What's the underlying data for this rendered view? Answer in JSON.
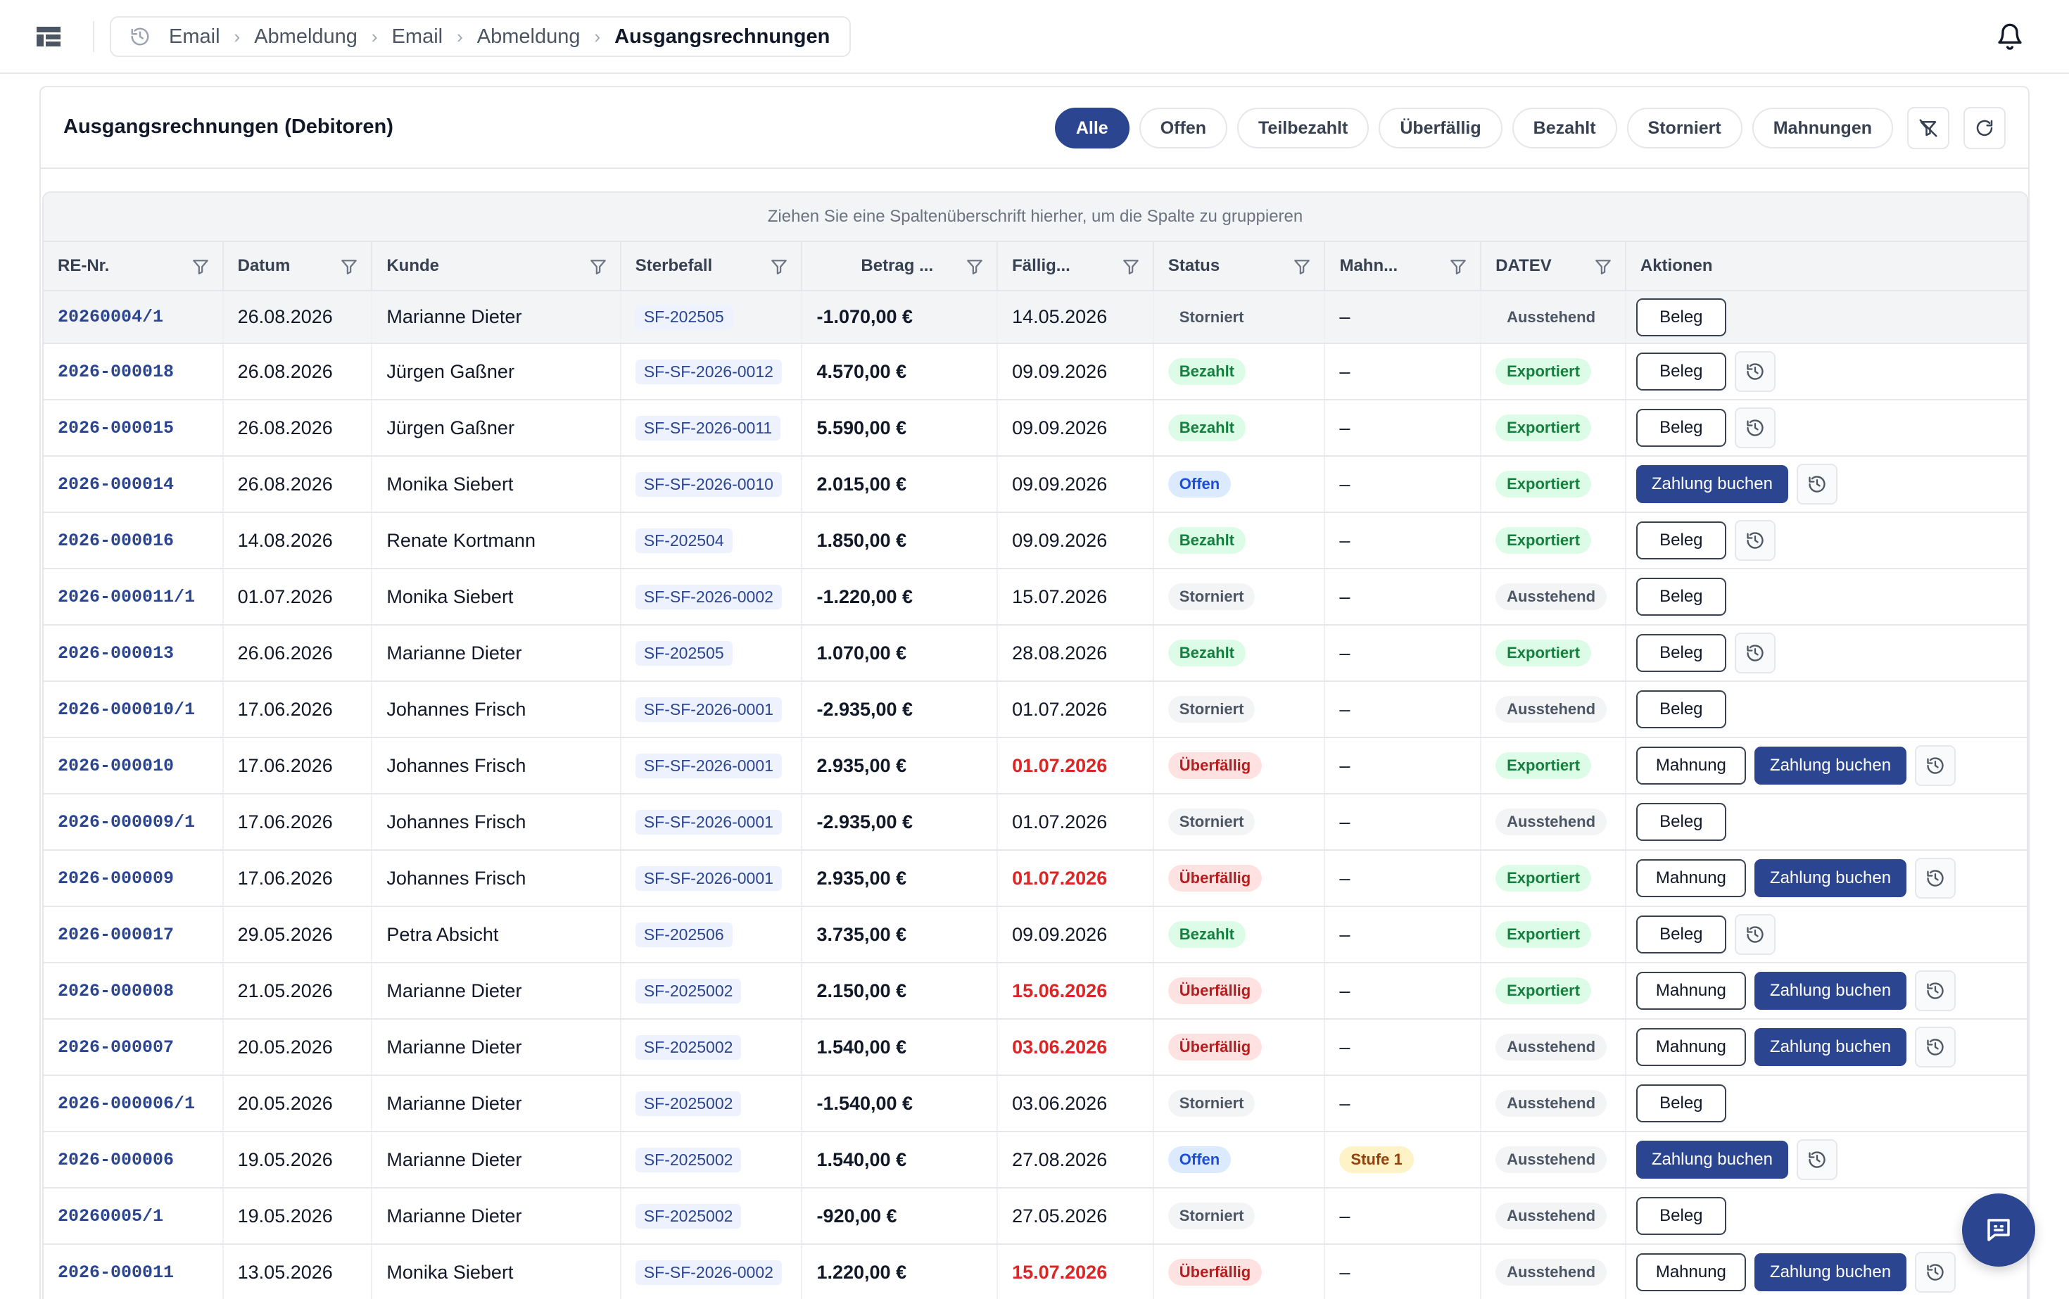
{
  "breadcrumb": [
    "Email",
    "Abmeldung",
    "Email",
    "Abmeldung",
    "Ausgangsrechnungen"
  ],
  "page": {
    "title": "Ausgangsrechnungen (Debitoren)"
  },
  "filters": [
    "Alle",
    "Offen",
    "Teilbezahlt",
    "Überfällig",
    "Bezahlt",
    "Storniert",
    "Mahnungen"
  ],
  "active_filter": "Alle",
  "grid": {
    "group_hint": "Ziehen Sie eine Spaltenüberschrift hierher, um die Spalte zu gruppieren",
    "columns": [
      "RE-Nr.",
      "Datum",
      "Kunde",
      "Sterbefall",
      "Betrag ...",
      "Fällig...",
      "Status",
      "Mahn...",
      "DATEV",
      "Aktionen"
    ]
  },
  "labels": {
    "beleg": "Beleg",
    "mahnung": "Mahnung",
    "zahlung": "Zahlung buchen"
  },
  "colors": {
    "primary": "#2b4590",
    "overdue": "#dc2626",
    "paid": "#15803d"
  },
  "rows": [
    {
      "re": "20260004/1",
      "datum": "26.08.2026",
      "kunde": "Marianne Dieter",
      "sterbefall": "SF-202505",
      "betrag": "-1.070,00 €",
      "faellig": "14.05.2026",
      "faellig_overdue": false,
      "status": "Storniert",
      "mahn": "–",
      "datev": "Ausstehend",
      "actions": [
        "beleg"
      ]
    },
    {
      "re": "2026-000018",
      "datum": "26.08.2026",
      "kunde": "Jürgen Gaßner",
      "sterbefall": "SF-SF-2026-0012",
      "betrag": "4.570,00 €",
      "faellig": "09.09.2026",
      "faellig_overdue": false,
      "status": "Bezahlt",
      "mahn": "–",
      "datev": "Exportiert",
      "actions": [
        "beleg",
        "history"
      ]
    },
    {
      "re": "2026-000015",
      "datum": "26.08.2026",
      "kunde": "Jürgen Gaßner",
      "sterbefall": "SF-SF-2026-0011",
      "betrag": "5.590,00 €",
      "faellig": "09.09.2026",
      "faellig_overdue": false,
      "status": "Bezahlt",
      "mahn": "–",
      "datev": "Exportiert",
      "actions": [
        "beleg",
        "history"
      ]
    },
    {
      "re": "2026-000014",
      "datum": "26.08.2026",
      "kunde": "Monika Siebert",
      "sterbefall": "SF-SF-2026-0010",
      "betrag": "2.015,00 €",
      "faellig": "09.09.2026",
      "faellig_overdue": false,
      "status": "Offen",
      "mahn": "–",
      "datev": "Exportiert",
      "actions": [
        "zahlung",
        "history"
      ]
    },
    {
      "re": "2026-000016",
      "datum": "14.08.2026",
      "kunde": "Renate Kortmann",
      "sterbefall": "SF-202504",
      "betrag": "1.850,00 €",
      "faellig": "09.09.2026",
      "faellig_overdue": false,
      "status": "Bezahlt",
      "mahn": "–",
      "datev": "Exportiert",
      "actions": [
        "beleg",
        "history"
      ]
    },
    {
      "re": "2026-000011/1",
      "datum": "01.07.2026",
      "kunde": "Monika Siebert",
      "sterbefall": "SF-SF-2026-0002",
      "betrag": "-1.220,00 €",
      "faellig": "15.07.2026",
      "faellig_overdue": false,
      "status": "Storniert",
      "mahn": "–",
      "datev": "Ausstehend",
      "actions": [
        "beleg"
      ]
    },
    {
      "re": "2026-000013",
      "datum": "26.06.2026",
      "kunde": "Marianne Dieter",
      "sterbefall": "SF-202505",
      "betrag": "1.070,00 €",
      "faellig": "28.08.2026",
      "faellig_overdue": false,
      "status": "Bezahlt",
      "mahn": "–",
      "datev": "Exportiert",
      "actions": [
        "beleg",
        "history"
      ]
    },
    {
      "re": "2026-000010/1",
      "datum": "17.06.2026",
      "kunde": "Johannes Frisch",
      "sterbefall": "SF-SF-2026-0001",
      "betrag": "-2.935,00 €",
      "faellig": "01.07.2026",
      "faellig_overdue": false,
      "status": "Storniert",
      "mahn": "–",
      "datev": "Ausstehend",
      "actions": [
        "beleg"
      ]
    },
    {
      "re": "2026-000010",
      "datum": "17.06.2026",
      "kunde": "Johannes Frisch",
      "sterbefall": "SF-SF-2026-0001",
      "betrag": "2.935,00 €",
      "faellig": "01.07.2026",
      "faellig_overdue": true,
      "status": "Überfällig",
      "mahn": "–",
      "datev": "Exportiert",
      "actions": [
        "mahnung",
        "zahlung",
        "history"
      ]
    },
    {
      "re": "2026-000009/1",
      "datum": "17.06.2026",
      "kunde": "Johannes Frisch",
      "sterbefall": "SF-SF-2026-0001",
      "betrag": "-2.935,00 €",
      "faellig": "01.07.2026",
      "faellig_overdue": false,
      "status": "Storniert",
      "mahn": "–",
      "datev": "Ausstehend",
      "actions": [
        "beleg"
      ]
    },
    {
      "re": "2026-000009",
      "datum": "17.06.2026",
      "kunde": "Johannes Frisch",
      "sterbefall": "SF-SF-2026-0001",
      "betrag": "2.935,00 €",
      "faellig": "01.07.2026",
      "faellig_overdue": true,
      "status": "Überfällig",
      "mahn": "–",
      "datev": "Exportiert",
      "actions": [
        "mahnung",
        "zahlung",
        "history"
      ]
    },
    {
      "re": "2026-000017",
      "datum": "29.05.2026",
      "kunde": "Petra Absicht",
      "sterbefall": "SF-202506",
      "betrag": "3.735,00 €",
      "faellig": "09.09.2026",
      "faellig_overdue": false,
      "status": "Bezahlt",
      "mahn": "–",
      "datev": "Exportiert",
      "actions": [
        "beleg",
        "history"
      ]
    },
    {
      "re": "2026-000008",
      "datum": "21.05.2026",
      "kunde": "Marianne Dieter",
      "sterbefall": "SF-2025002",
      "betrag": "2.150,00 €",
      "faellig": "15.06.2026",
      "faellig_overdue": true,
      "status": "Überfällig",
      "mahn": "–",
      "datev": "Exportiert",
      "actions": [
        "mahnung",
        "zahlung",
        "history"
      ]
    },
    {
      "re": "2026-000007",
      "datum": "20.05.2026",
      "kunde": "Marianne Dieter",
      "sterbefall": "SF-2025002",
      "betrag": "1.540,00 €",
      "faellig": "03.06.2026",
      "faellig_overdue": true,
      "status": "Überfällig",
      "mahn": "–",
      "datev": "Ausstehend",
      "actions": [
        "mahnung",
        "zahlung",
        "history"
      ]
    },
    {
      "re": "2026-000006/1",
      "datum": "20.05.2026",
      "kunde": "Marianne Dieter",
      "sterbefall": "SF-2025002",
      "betrag": "-1.540,00 €",
      "faellig": "03.06.2026",
      "faellig_overdue": false,
      "status": "Storniert",
      "mahn": "–",
      "datev": "Ausstehend",
      "actions": [
        "beleg"
      ]
    },
    {
      "re": "2026-000006",
      "datum": "19.05.2026",
      "kunde": "Marianne Dieter",
      "sterbefall": "SF-2025002",
      "betrag": "1.540,00 €",
      "faellig": "27.08.2026",
      "faellig_overdue": false,
      "status": "Offen",
      "mahn": "Stufe 1",
      "datev": "Ausstehend",
      "actions": [
        "zahlung",
        "history"
      ]
    },
    {
      "re": "20260005/1",
      "datum": "19.05.2026",
      "kunde": "Marianne Dieter",
      "sterbefall": "SF-2025002",
      "betrag": "-920,00 €",
      "faellig": "27.05.2026",
      "faellig_overdue": false,
      "status": "Storniert",
      "mahn": "–",
      "datev": "Ausstehend",
      "actions": [
        "beleg"
      ]
    },
    {
      "re": "2026-000011",
      "datum": "13.05.2026",
      "kunde": "Monika Siebert",
      "sterbefall": "SF-SF-2026-0002",
      "betrag": "1.220,00 €",
      "faellig": "15.07.2026",
      "faellig_overdue": true,
      "status": "Überfällig",
      "mahn": "–",
      "datev": "Ausstehend",
      "actions": [
        "mahnung",
        "zahlung",
        "history"
      ]
    }
  ]
}
